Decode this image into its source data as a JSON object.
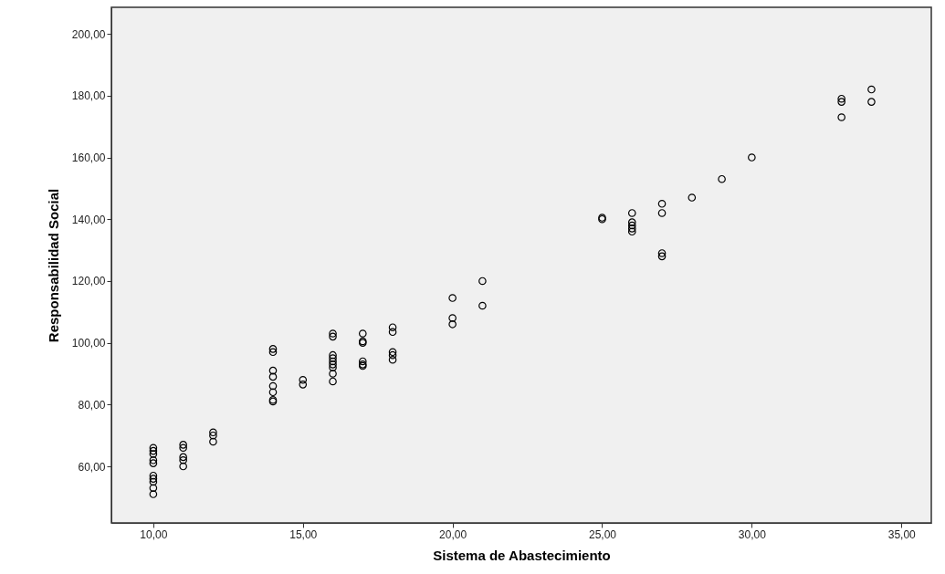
{
  "chart_data": {
    "type": "scatter",
    "xlabel": "Sistema de Abastecimiento",
    "ylabel": "Responsabilidad Social",
    "marker": "circle",
    "xlim": [
      8.6,
      36
    ],
    "ylim": [
      41.7,
      208.6
    ],
    "xticks": [
      {
        "value": 10,
        "label": "10,00"
      },
      {
        "value": 15,
        "label": "15,00"
      },
      {
        "value": 20,
        "label": "20,00"
      },
      {
        "value": 25,
        "label": "25,00"
      },
      {
        "value": 30,
        "label": "30,00"
      },
      {
        "value": 35,
        "label": "35,00"
      }
    ],
    "yticks": [
      {
        "value": 60,
        "label": "60,00"
      },
      {
        "value": 80,
        "label": "80,00"
      },
      {
        "value": 100,
        "label": "100,00"
      },
      {
        "value": 120,
        "label": "120,00"
      },
      {
        "value": 140,
        "label": "140,00"
      },
      {
        "value": 160,
        "label": "160,00"
      },
      {
        "value": 180,
        "label": "180,00"
      },
      {
        "value": 200,
        "label": "200,00"
      }
    ],
    "series": [
      {
        "color": "#000000",
        "x": [
          10,
          10,
          10,
          10,
          10,
          10,
          10,
          10,
          10,
          10,
          11,
          11,
          11,
          11,
          11,
          12,
          12,
          12,
          14,
          14,
          14,
          14,
          14,
          14,
          14,
          14,
          15,
          15,
          16,
          16,
          16,
          16,
          16,
          16,
          16,
          16,
          16,
          17,
          17,
          17,
          17,
          17,
          17,
          18,
          18,
          18,
          18,
          18,
          20,
          20,
          20,
          21,
          21,
          25,
          25,
          26,
          26,
          26,
          26,
          26,
          27,
          27,
          27,
          27,
          28,
          29,
          30,
          33,
          33,
          33,
          34,
          34
        ],
        "values": [
          66,
          65,
          64,
          62,
          61,
          57,
          56,
          55,
          53,
          51,
          67,
          66,
          63,
          62,
          60,
          71,
          70,
          68,
          98,
          97,
          91,
          89,
          86,
          84,
          81.5,
          81,
          88,
          86.5,
          103,
          102,
          96,
          95,
          94,
          93,
          92,
          90,
          87.5,
          103,
          100.5,
          100,
          94,
          93,
          92.5,
          105,
          103.5,
          97,
          96,
          94.5,
          114.5,
          108,
          106,
          120,
          112,
          140.5,
          140,
          142,
          139,
          138,
          137,
          136,
          145,
          142,
          129,
          128,
          147,
          153,
          160,
          179,
          178,
          173,
          182,
          178
        ]
      }
    ]
  }
}
